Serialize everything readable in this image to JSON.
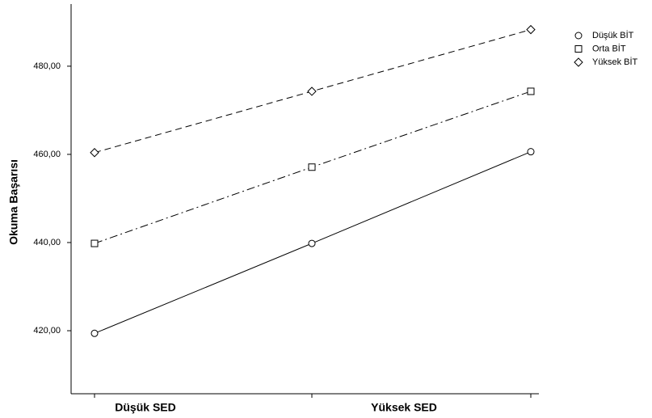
{
  "chart_data": {
    "type": "line",
    "y_label": "Okuma Başarısı",
    "categories": [
      "Düşük SED",
      null,
      "Yüksek SED"
    ],
    "series": [
      {
        "name": "Düşük BİT",
        "color": "#000000",
        "marker": "circle",
        "dash": "solid",
        "values": [
          419.4,
          439.8,
          460.6
        ]
      },
      {
        "name": "Orta BİT",
        "color": "#000000",
        "marker": "square",
        "dash": "dashdot",
        "values": [
          439.8,
          457.1,
          474.3
        ]
      },
      {
        "name": "Yüksek BİT",
        "color": "#000000",
        "marker": "diamond",
        "dash": "dashed",
        "values": [
          460.4,
          474.3,
          488.3
        ]
      }
    ],
    "ylim": [
      405.7,
      494.1
    ],
    "yticks": [
      {
        "value": 420,
        "label": "420,00"
      },
      {
        "value": 440,
        "label": "440,00"
      },
      {
        "value": 460,
        "label": "460,00"
      },
      {
        "value": 480,
        "label": "480,00"
      }
    ],
    "grid": false,
    "legend": "top-right"
  }
}
